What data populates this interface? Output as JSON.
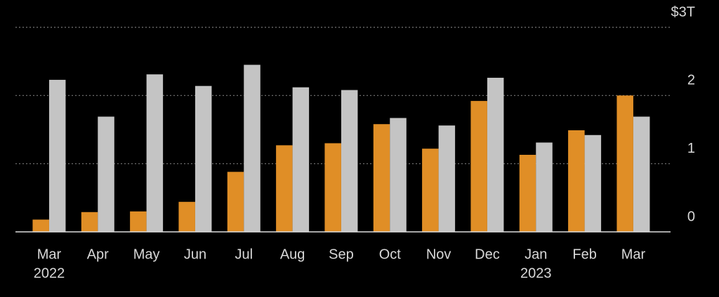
{
  "chart_data": {
    "type": "bar",
    "categories": [
      "Mar",
      "Apr",
      "May",
      "Jun",
      "Jul",
      "Aug",
      "Sep",
      "Oct",
      "Nov",
      "Dec",
      "Jan",
      "Feb",
      "Mar"
    ],
    "category_sublabels": [
      "2022",
      null,
      null,
      null,
      null,
      null,
      null,
      null,
      null,
      null,
      "2023",
      null,
      null
    ],
    "series": [
      {
        "color": "#e08e26",
        "values": [
          0.18,
          0.29,
          0.3,
          0.44,
          0.88,
          1.27,
          1.3,
          1.58,
          1.22,
          1.92,
          1.13,
          1.49,
          2.0
        ]
      },
      {
        "color": "#c4c4c4",
        "values": [
          2.23,
          1.69,
          2.31,
          2.14,
          2.45,
          2.12,
          2.08,
          1.67,
          1.56,
          2.26,
          1.31,
          1.42,
          1.69
        ]
      }
    ],
    "ylim": [
      0,
      3
    ],
    "yticks": [
      0,
      1,
      2,
      {
        "value": 3,
        "label": "$3T"
      }
    ],
    "grid": true,
    "y_axis_side": "right"
  }
}
